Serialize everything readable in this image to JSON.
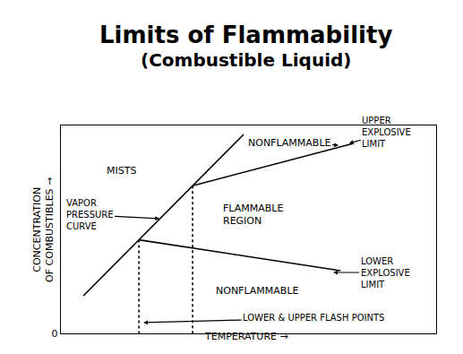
{
  "chart_data": {
    "type": "line",
    "title": "Limits of Flammability",
    "subtitle": "(Combustible Liquid)",
    "x_label": "TEMPERATURE →",
    "y_label": "CONCENTRATION\nOF COMBUSTIBLES →",
    "xlim": [
      0,
      100
    ],
    "ylim": [
      0,
      100
    ],
    "xticks": [],
    "yticks": [
      0
    ],
    "tick_labels": "y",
    "grid": false,
    "series": [
      {
        "name": "VAPOR\nPRESSURE\nCURVE",
        "color": "#000000",
        "line_style": "solid",
        "x": [
          6.0,
          48.7
        ],
        "values": [
          18.1,
          95.7
        ]
      },
      {
        "name": "UPPER\nEXPLOSIVE\nLIMIT",
        "color": "#000000",
        "line_style": "solid",
        "x": [
          35.1,
          78.0
        ],
        "values": [
          71.0,
          91.4
        ]
      },
      {
        "name": "LOWER\nEXPLOSIVE\nLIMIT",
        "color": "#000000",
        "line_style": "solid",
        "x": [
          20.8,
          74.5
        ],
        "values": [
          45.0,
          30.2
        ]
      },
      {
        "name": "LOWER & UPPER FLASH POINTS",
        "color": "#000000",
        "line_style": "dotted",
        "x": [
          20.8,
          20.8,
          null,
          35.1,
          35.1
        ],
        "values": [
          45.0,
          0,
          null,
          71.0,
          0
        ]
      }
    ],
    "annotations": [
      "MISTS",
      "FLAMMABLE\nREGION",
      "NONFLAMMABLE",
      "NONFLAMMABLE"
    ]
  }
}
